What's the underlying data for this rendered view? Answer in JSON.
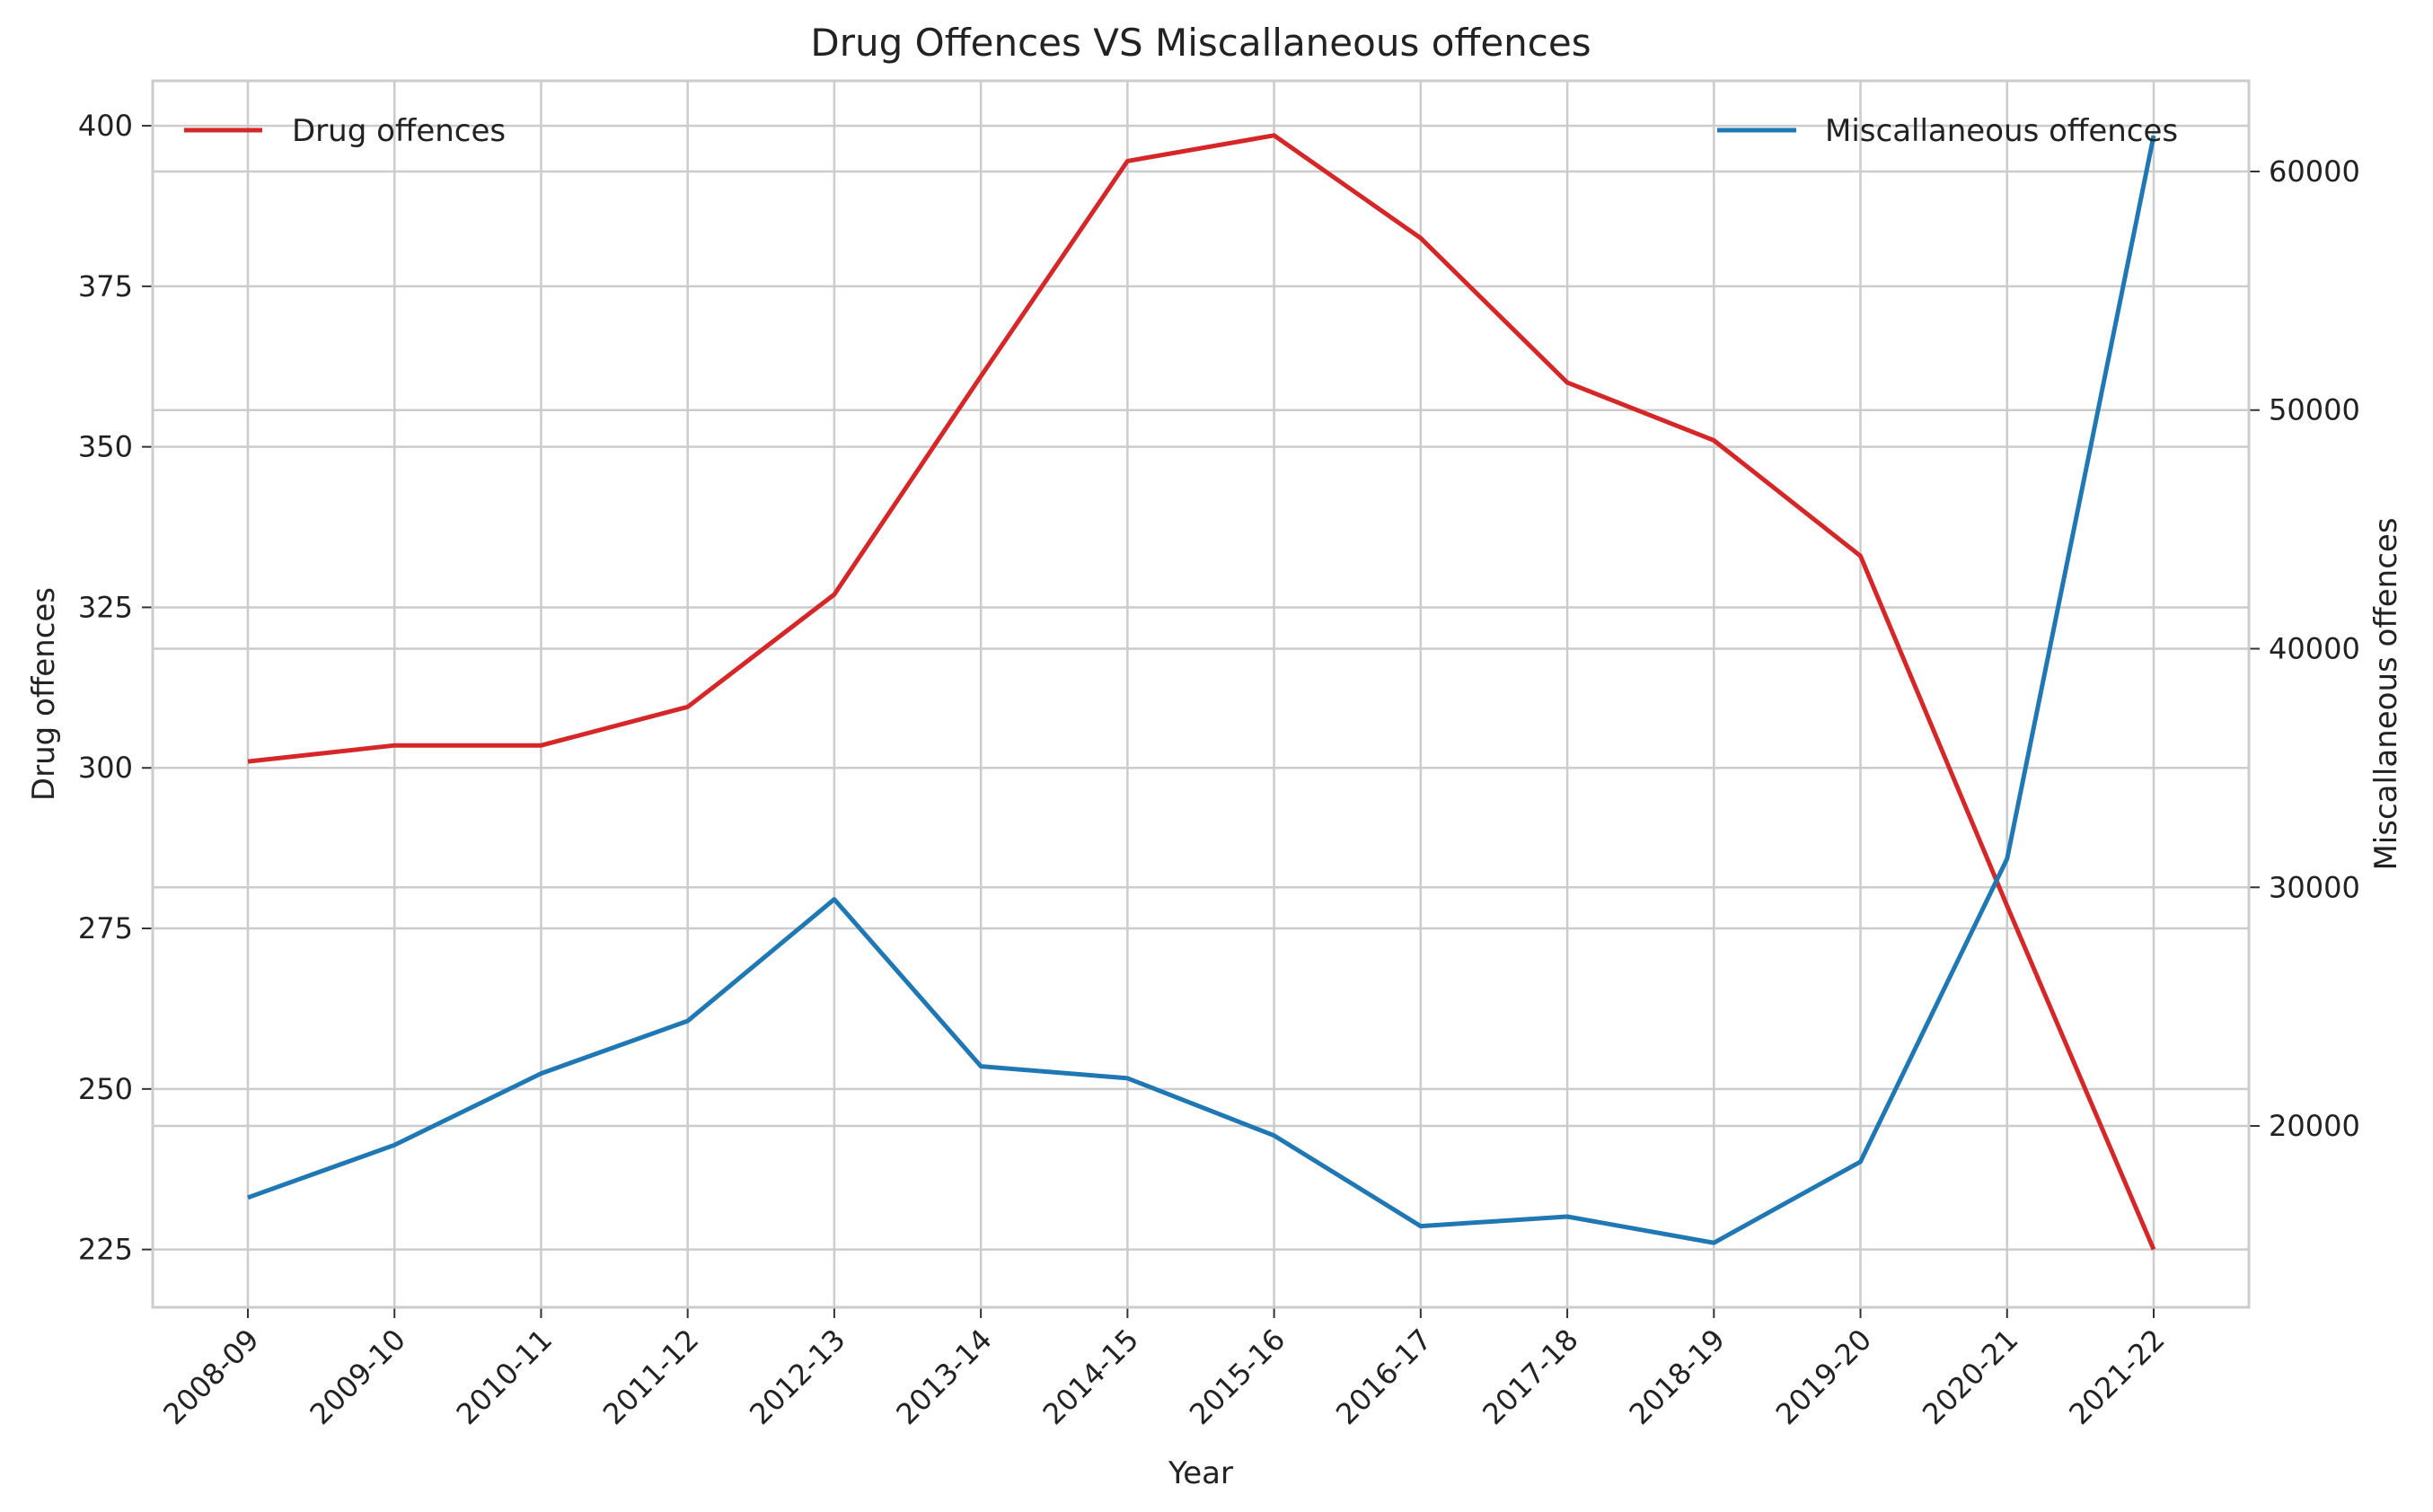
{
  "chart_data": {
    "type": "line",
    "title": "Drug Offences VS Miscallaneous offences",
    "xlabel": "Year",
    "ylabel_left": "Drug offences",
    "ylabel_right": "Miscallaneous offences",
    "categories": [
      "2008-09",
      "2009-10",
      "2010-11",
      "2011-12",
      "2012-13",
      "2013-14",
      "2014-15",
      "2015-16",
      "2016-17",
      "2017-18",
      "2018-19",
      "2019-20",
      "2020-21",
      "2021-22"
    ],
    "left_axis": {
      "range": [
        216,
        407
      ],
      "ticks": [
        225,
        250,
        275,
        300,
        325,
        350,
        375,
        400
      ]
    },
    "right_axis": {
      "range": [
        12400,
        63800
      ],
      "ticks": [
        20000,
        30000,
        40000,
        50000,
        60000
      ]
    },
    "grid": true,
    "series": [
      {
        "name": "Drug offences",
        "axis": "left",
        "color": "#d62728",
        "legend_position": "top-left",
        "values": [
          301,
          303.5,
          303.5,
          309.5,
          327,
          361,
          394.5,
          398.5,
          382.5,
          360,
          351,
          333,
          278.5,
          225
        ]
      },
      {
        "name": "Miscallaneous offences",
        "axis": "right",
        "color": "#1f77b4",
        "legend_position": "top-right",
        "values": [
          17000,
          19200,
          22200,
          24400,
          29500,
          22500,
          22000,
          19600,
          15800,
          16200,
          15100,
          18500,
          31200,
          61500
        ]
      }
    ]
  }
}
